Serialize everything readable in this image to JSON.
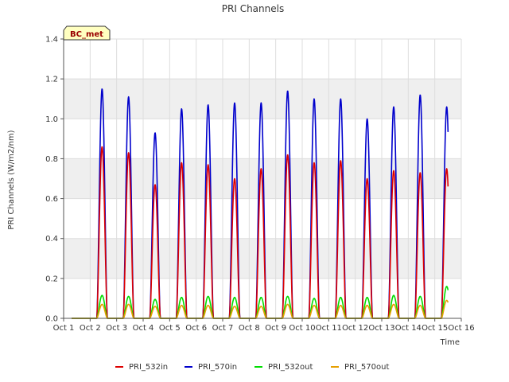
{
  "chart_data": {
    "type": "line",
    "title": "PRI Channels",
    "xlabel": "Time",
    "ylabel": "PRI Channels (W/m2/nm)",
    "badge": "BC_met",
    "xlim": [
      1,
      16
    ],
    "ylim": [
      0,
      1.4
    ],
    "x_ticks": [
      {
        "value": 1,
        "label": "Oct 1"
      },
      {
        "value": 2,
        "label": "Oct 2"
      },
      {
        "value": 3,
        "label": "Oct 3"
      },
      {
        "value": 4,
        "label": "Oct 4"
      },
      {
        "value": 5,
        "label": "Oct 5"
      },
      {
        "value": 6,
        "label": "Oct 6"
      },
      {
        "value": 7,
        "label": "Oct 7"
      },
      {
        "value": 8,
        "label": "Oct 8"
      },
      {
        "value": 9,
        "label": "Oct 9"
      },
      {
        "value": 10,
        "label": "Oct 10"
      },
      {
        "value": 11,
        "label": "Oct 11"
      },
      {
        "value": 12,
        "label": "Oct 12"
      },
      {
        "value": 13,
        "label": "Oct 13"
      },
      {
        "value": 14,
        "label": "Oct 14"
      },
      {
        "value": 15,
        "label": "Oct 15"
      },
      {
        "value": 16,
        "label": "Oct 16"
      }
    ],
    "y_ticks": [
      {
        "value": 0,
        "label": "0.0"
      },
      {
        "value": 0.2,
        "label": "0.2"
      },
      {
        "value": 0.4,
        "label": "0.4"
      },
      {
        "value": 0.6,
        "label": "0.6"
      },
      {
        "value": 0.8,
        "label": "0.8"
      },
      {
        "value": 1.0,
        "label": "1.0"
      },
      {
        "value": 1.2,
        "label": "1.2"
      },
      {
        "value": 1.4,
        "label": "1.4"
      }
    ],
    "day_noon_offset": 0.45,
    "series": [
      {
        "name": "PRI_532in",
        "color": "#dd0000",
        "daily_peaks": [
          0.86,
          0.83,
          0.67,
          0.78,
          0.77,
          0.7,
          0.75,
          0.82,
          0.78,
          0.79,
          0.7,
          0.74,
          0.73,
          0.75
        ]
      },
      {
        "name": "PRI_570in",
        "color": "#0000cc",
        "daily_peaks": [
          1.15,
          1.11,
          0.93,
          1.05,
          1.07,
          1.08,
          1.08,
          1.14,
          1.1,
          1.1,
          1.0,
          1.06,
          1.12,
          1.06
        ]
      },
      {
        "name": "PRI_532out",
        "color": "#00dd00",
        "daily_peaks": [
          0.115,
          0.11,
          0.095,
          0.105,
          0.11,
          0.105,
          0.105,
          0.11,
          0.1,
          0.105,
          0.105,
          0.115,
          0.11,
          0.16
        ]
      },
      {
        "name": "PRI_570out",
        "color": "#e69f00",
        "daily_peaks": [
          0.07,
          0.07,
          0.06,
          0.065,
          0.065,
          0.06,
          0.06,
          0.07,
          0.065,
          0.065,
          0.065,
          0.07,
          0.065,
          0.09
        ]
      }
    ]
  }
}
